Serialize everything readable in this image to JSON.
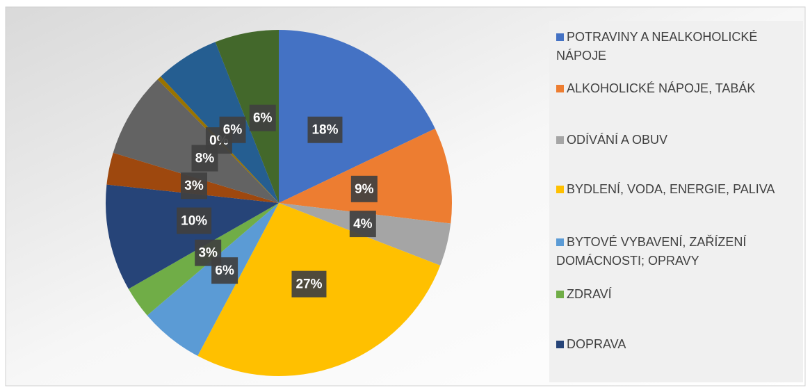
{
  "chart_data": {
    "type": "pie",
    "categories": [
      "POTRAVINY A NEALKOHOLICKÉ NÁPOJE",
      "ALKOHOLICKÉ NÁPOJE, TABÁK",
      "ODÍVÁNÍ A OBUV",
      "BYDLENÍ, VODA, ENERGIE, PALIVA",
      "BYTOVÉ VYBAVENÍ, ZAŘÍZENÍ DOMÁCNOSTI; OPRAVY",
      "ZDRAVÍ",
      "DOPRAVA",
      null,
      null,
      null,
      null,
      null
    ],
    "values": [
      18,
      9,
      4,
      27,
      6,
      3,
      10,
      3,
      8,
      0.4,
      6,
      6
    ],
    "value_labels": [
      "18%",
      "9%",
      "4%",
      "27%",
      "6%",
      "3%",
      "10%",
      "3%",
      "8%",
      "0%",
      "6%",
      "6%"
    ],
    "colors": [
      "#4472c4",
      "#ed7d31",
      "#a5a5a5",
      "#ffc000",
      "#5b9bd5",
      "#70ad47",
      "#264478",
      "#9e480e",
      "#636363",
      "#997300",
      "#255e91",
      "#43682b"
    ],
    "legend": "right"
  }
}
